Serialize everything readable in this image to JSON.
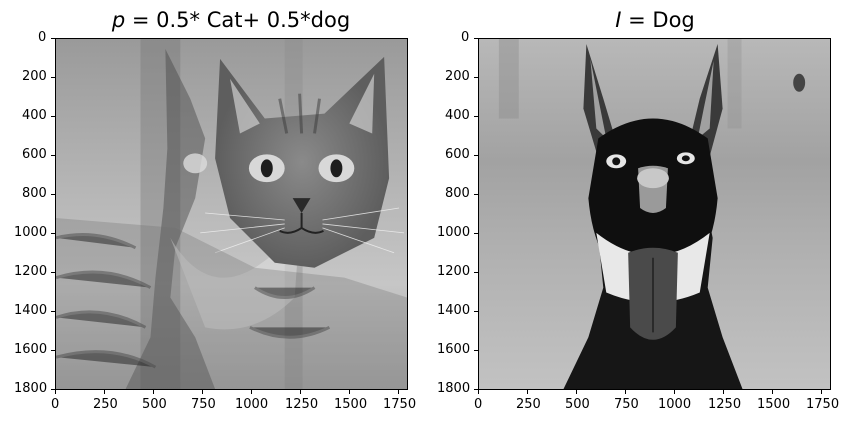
{
  "figure": {
    "panels": [
      {
        "title_var": "p",
        "title_rest": " = 0.5* Cat+ 0.5*dog",
        "image": "blended grayscale photo of a tabby cat face overlaid with a dog face",
        "xticks": [
          "0",
          "250",
          "500",
          "750",
          "1000",
          "1250",
          "1500",
          "1750"
        ],
        "yticks": [
          "0",
          "200",
          "400",
          "600",
          "800",
          "1000",
          "1200",
          "1400",
          "1600",
          "1800"
        ]
      },
      {
        "title_var": "I",
        "title_rest": " = Dog",
        "image": "inverted grayscale photo of a dog with open mouth",
        "xticks": [
          "0",
          "250",
          "500",
          "750",
          "1000",
          "1250",
          "1500",
          "1750"
        ],
        "yticks": [
          "0",
          "200",
          "400",
          "600",
          "800",
          "1000",
          "1200",
          "1400",
          "1600",
          "1800"
        ]
      }
    ]
  }
}
